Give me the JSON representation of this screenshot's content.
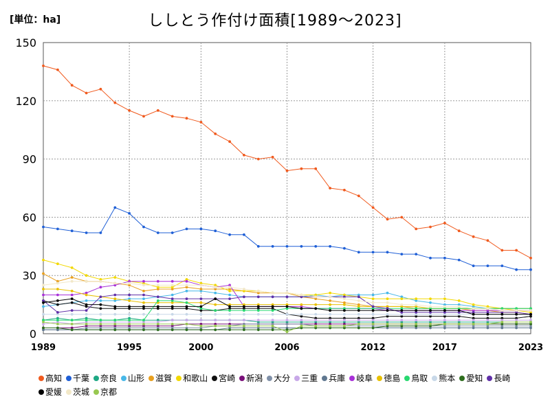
{
  "chart_data": {
    "type": "line",
    "title": "ししとう作付け面積[1989～2023]",
    "unit_label": "[単位：ha]",
    "ylim": [
      0,
      150
    ],
    "yticks": [
      0,
      30,
      60,
      90,
      120,
      150
    ],
    "xlim": [
      1989,
      2023
    ],
    "xticks": [
      1989,
      1995,
      2000,
      2006,
      2012,
      2017,
      2023
    ],
    "grid": true,
    "legend_position": "bottom",
    "x": [
      1989,
      1990,
      1991,
      1992,
      1993,
      1994,
      1995,
      1996,
      1997,
      1998,
      1999,
      2000,
      2001,
      2002,
      2003,
      2004,
      2005,
      2006,
      2007,
      2008,
      2009,
      2010,
      2011,
      2012,
      2013,
      2014,
      2015,
      2016,
      2017,
      2018,
      2019,
      2020,
      2021,
      2022,
      2023
    ],
    "series": [
      {
        "name": "高知",
        "color": "#f05a1e",
        "values": [
          138,
          136,
          128,
          124,
          126,
          119,
          115,
          112,
          115,
          112,
          111,
          109,
          103,
          99,
          92,
          90,
          91,
          84,
          85,
          85,
          75,
          74,
          71,
          65,
          59,
          60,
          54,
          55,
          57,
          53,
          50,
          48,
          43,
          43,
          39
        ]
      },
      {
        "name": "千葉",
        "color": "#1f5fd6",
        "values": [
          55,
          54,
          53,
          52,
          52,
          65,
          62,
          55,
          52,
          52,
          54,
          54,
          53,
          51,
          51,
          45,
          45,
          45,
          45,
          45,
          45,
          44,
          42,
          42,
          42,
          41,
          41,
          39,
          39,
          38,
          35,
          35,
          35,
          33,
          33
        ]
      },
      {
        "name": "奈良",
        "color": "#1ea884",
        "values": [
          7,
          8,
          7,
          8,
          7,
          7,
          8,
          7,
          7,
          7,
          7,
          7,
          7,
          7,
          7,
          6,
          6,
          6,
          6,
          6,
          6,
          6,
          6,
          6,
          6,
          6,
          6,
          6,
          6,
          6,
          6,
          6,
          6,
          6,
          6
        ]
      },
      {
        "name": "山形",
        "color": "#48b8e8",
        "values": [
          14,
          15,
          16,
          17,
          17,
          17,
          18,
          18,
          19,
          20,
          22,
          22,
          21,
          20,
          19,
          19,
          19,
          19,
          19,
          20,
          19,
          20,
          20,
          20,
          21,
          19,
          17,
          16,
          15,
          15,
          14,
          13,
          13,
          13,
          13
        ]
      },
      {
        "name": "滋賀",
        "color": "#e8a020",
        "values": [
          31,
          27,
          29,
          27,
          27,
          26,
          25,
          22,
          23,
          23,
          24,
          23,
          23,
          23,
          22,
          21,
          21,
          21,
          19,
          18,
          17,
          16,
          15,
          14,
          14,
          14,
          13,
          13,
          13,
          13,
          12,
          12,
          11,
          11,
          10
        ]
      },
      {
        "name": "和歌山",
        "color": "#f2d800",
        "values": [
          38,
          36,
          34,
          30,
          28,
          29,
          27,
          26,
          24,
          24,
          28,
          26,
          25,
          22,
          22,
          22,
          21,
          21,
          20,
          20,
          21,
          20,
          19,
          18,
          18,
          18,
          18,
          18,
          18,
          17,
          15,
          14,
          13,
          12,
          11
        ]
      },
      {
        "name": "宮崎",
        "color": "#101010",
        "values": [
          17,
          15,
          16,
          14,
          13,
          13,
          13,
          13,
          13,
          13,
          13,
          12,
          12,
          13,
          13,
          13,
          13,
          10,
          9,
          8,
          8,
          8,
          8,
          8,
          9,
          9,
          9,
          9,
          9,
          9,
          8,
          8,
          8,
          8,
          9
        ]
      },
      {
        "name": "新潟",
        "color": "#7a107a",
        "values": [
          3,
          3,
          3,
          4,
          4,
          4,
          4,
          4,
          4,
          4,
          5,
          5,
          5,
          5,
          5,
          5,
          5,
          5,
          5,
          5,
          5,
          5,
          5,
          5,
          5,
          5,
          5,
          5,
          5,
          5,
          5,
          5,
          5,
          5,
          5
        ]
      },
      {
        "name": "大分",
        "color": "#8090a8",
        "values": [
          2,
          2,
          2,
          3,
          3,
          3,
          3,
          3,
          3,
          3,
          3,
          3,
          4,
          4,
          5,
          5,
          5,
          5,
          5,
          4,
          4,
          4,
          4,
          4,
          4,
          4,
          4,
          4,
          4,
          4,
          4,
          4,
          4,
          4,
          4
        ]
      },
      {
        "name": "三重",
        "color": "#c8a8e8",
        "values": [
          5,
          6,
          5,
          6,
          6,
          6,
          6,
          6,
          6,
          7,
          7,
          7,
          7,
          7,
          7,
          7,
          7,
          7,
          7,
          7,
          7,
          7,
          7,
          7,
          7,
          7,
          7,
          7,
          7,
          7,
          7,
          7,
          7,
          7,
          7
        ]
      },
      {
        "name": "兵庫",
        "color": "#607890",
        "values": [
          2,
          2,
          2,
          2,
          2,
          2,
          2,
          2,
          2,
          2,
          2,
          2,
          2,
          3,
          3,
          3,
          3,
          3,
          3,
          3,
          3,
          3,
          3,
          3,
          3,
          3,
          3,
          3,
          3,
          3,
          3,
          3,
          3,
          3,
          3
        ]
      },
      {
        "name": "岐阜",
        "color": "#a830d8",
        "values": [
          20,
          20,
          20,
          21,
          24,
          25,
          27,
          27,
          27,
          27,
          27,
          25,
          24,
          25,
          14,
          14,
          14,
          14,
          14,
          13,
          13,
          13,
          13,
          13,
          12,
          12,
          12,
          12,
          12,
          12,
          12,
          12,
          12,
          12,
          12
        ]
      },
      {
        "name": "徳島",
        "color": "#e8c000",
        "values": [
          23,
          23,
          22,
          20,
          19,
          18,
          17,
          16,
          16,
          16,
          16,
          16,
          15,
          15,
          15,
          15,
          15,
          15,
          15,
          15,
          15,
          15,
          14,
          14,
          14,
          14,
          14,
          13,
          13,
          13,
          13,
          13,
          13,
          13,
          13
        ]
      },
      {
        "name": "鳥取",
        "color": "#28d870",
        "values": [
          7,
          7,
          7,
          7,
          7,
          7,
          7,
          7,
          17,
          17,
          16,
          13,
          12,
          12,
          12,
          12,
          12,
          13,
          13,
          13,
          13,
          13,
          13,
          13,
          13,
          13,
          13,
          13,
          13,
          13,
          13,
          13,
          13,
          13,
          13
        ]
      },
      {
        "name": "熊本",
        "color": "#c8d8e8",
        "values": [
          10,
          10,
          10,
          10,
          10,
          10,
          10,
          10,
          10,
          10,
          10,
          10,
          10,
          10,
          10,
          10,
          10,
          10,
          10,
          10,
          10,
          10,
          10,
          10,
          10,
          10,
          10,
          10,
          10,
          10,
          10,
          10,
          10,
          10,
          10
        ]
      },
      {
        "name": "愛知",
        "color": "#2e6e1e",
        "values": [
          3,
          3,
          2,
          2,
          2,
          2,
          2,
          2,
          2,
          2,
          2,
          2,
          2,
          2,
          2,
          2,
          2,
          2,
          3,
          3,
          3,
          3,
          3,
          3,
          4,
          4,
          4,
          4,
          5,
          5,
          5,
          5,
          5,
          5,
          5
        ]
      },
      {
        "name": "長崎",
        "color": "#6030a8",
        "values": [
          17,
          11,
          12,
          12,
          19,
          20,
          20,
          20,
          19,
          18,
          18,
          18,
          18,
          18,
          19,
          19,
          19,
          19,
          19,
          19,
          19,
          19,
          19,
          14,
          13,
          11,
          11,
          11,
          11,
          11,
          11,
          11,
          11,
          11,
          10
        ]
      },
      {
        "name": "愛媛",
        "color": "#000000",
        "values": [
          16,
          17,
          18,
          15,
          15,
          14,
          14,
          14,
          14,
          14,
          14,
          14,
          18,
          14,
          14,
          14,
          14,
          14,
          13,
          13,
          12,
          12,
          12,
          12,
          12,
          12,
          12,
          12,
          12,
          12,
          10,
          10,
          10,
          10,
          10
        ]
      },
      {
        "name": "茨城",
        "color": "#f2e8c8",
        "values": [
          25,
          26,
          27,
          27,
          27,
          26,
          26,
          25,
          25,
          25,
          25,
          25,
          24,
          24,
          23,
          22,
          21,
          21,
          20,
          19,
          19,
          18,
          17,
          16,
          16,
          15,
          15,
          14,
          14,
          14,
          13,
          13,
          12,
          12,
          12
        ]
      },
      {
        "name": "京都",
        "color": "#98c850",
        "values": [
          6,
          5,
          5,
          5,
          5,
          5,
          5,
          5,
          5,
          5,
          5,
          4,
          4,
          4,
          4,
          4,
          4,
          1,
          4,
          4,
          4,
          4,
          5,
          5,
          5,
          5,
          5,
          5,
          5,
          5,
          5,
          5,
          6,
          6,
          6
        ]
      }
    ]
  }
}
